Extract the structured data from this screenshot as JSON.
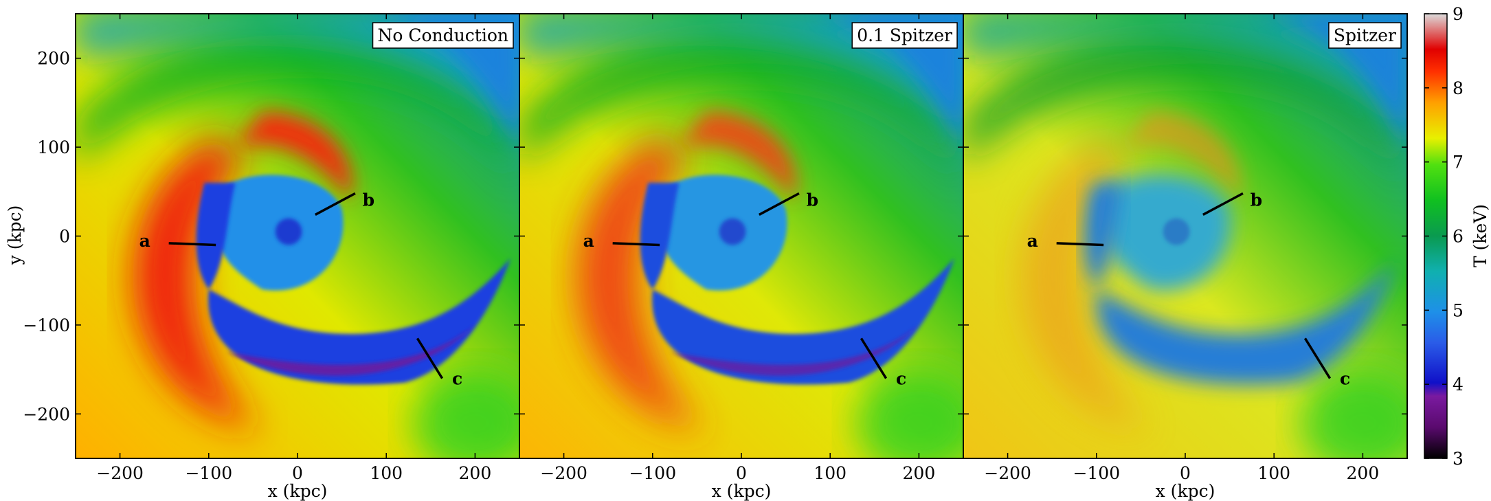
{
  "chart_data": {
    "type": "heatmap",
    "description_scale": "linear",
    "xlabel": "x (kpc)",
    "ylabel": "y (kpc)",
    "xlim": [
      -250,
      250
    ],
    "ylim": [
      -250,
      250
    ],
    "x_ticks": [
      -200,
      -100,
      0,
      100,
      200
    ],
    "y_ticks": [
      -200,
      -100,
      0,
      100,
      200
    ],
    "x_tick_labels": [
      "−200",
      "−100",
      "0",
      "100",
      "200"
    ],
    "y_tick_labels": [
      "−200",
      "−100",
      "0",
      "100",
      "200"
    ],
    "colorbar": {
      "label": "T (keV)",
      "min": 3,
      "max": 9,
      "ticks": [
        3,
        4,
        5,
        6,
        7,
        8,
        9
      ],
      "tick_labels": [
        "3",
        "4",
        "5",
        "6",
        "7",
        "8",
        "9"
      ]
    },
    "panels": [
      {
        "title": "No Conduction",
        "cold_front_contrast": 1.0,
        "markers": [
          {
            "label": "a",
            "x1": -145,
            "y1": -8,
            "x2": -92,
            "y2": -10,
            "lx": -172,
            "ly": -5
          },
          {
            "label": "b",
            "x1": 20,
            "y1": 24,
            "x2": 65,
            "y2": 48,
            "lx": 80,
            "ly": 41
          },
          {
            "label": "c",
            "x1": 135,
            "y1": -115,
            "x2": 163,
            "y2": -160,
            "lx": 180,
            "ly": -160
          }
        ]
      },
      {
        "title": "0.1 Spitzer",
        "cold_front_contrast": 0.85,
        "markers": [
          {
            "label": "a",
            "x1": -145,
            "y1": -8,
            "x2": -92,
            "y2": -10,
            "lx": -172,
            "ly": -5
          },
          {
            "label": "b",
            "x1": 20,
            "y1": 24,
            "x2": 65,
            "y2": 48,
            "lx": 80,
            "ly": 41
          },
          {
            "label": "c",
            "x1": 135,
            "y1": -115,
            "x2": 163,
            "y2": -160,
            "lx": 180,
            "ly": -160
          }
        ]
      },
      {
        "title": "Spitzer",
        "cold_front_contrast": 0.35,
        "markers": [
          {
            "label": "a",
            "x1": -145,
            "y1": -8,
            "x2": -92,
            "y2": -10,
            "lx": -172,
            "ly": -5
          },
          {
            "label": "b",
            "x1": 20,
            "y1": 24,
            "x2": 65,
            "y2": 48,
            "lx": 80,
            "ly": 41
          },
          {
            "label": "c",
            "x1": 135,
            "y1": -115,
            "x2": 163,
            "y2": -160,
            "lx": 180,
            "ly": -160
          }
        ]
      }
    ]
  }
}
